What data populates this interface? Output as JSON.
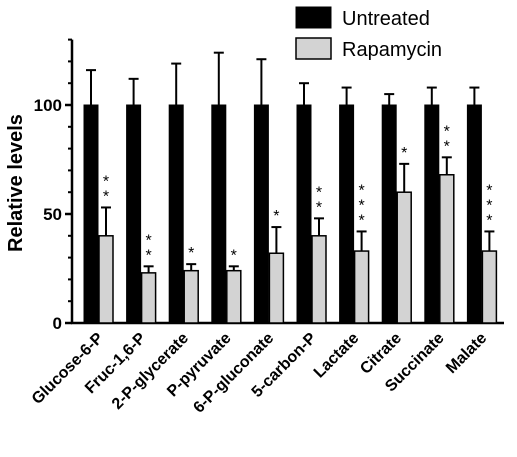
{
  "chart_data": {
    "type": "bar",
    "ylabel": "Relative levels",
    "ylim": [
      0,
      130
    ],
    "yticks": [
      0,
      50,
      100
    ],
    "categories": [
      "Glucose-6-P",
      "Fruc-1,6-P",
      "2-P-glycerate",
      "P-pyruvate",
      "6-P-gluconate",
      "5-carbon-P",
      "Lactate",
      "Citrate",
      "Succinate",
      "Malate"
    ],
    "series": [
      {
        "name": "Untreated",
        "color": "#000000",
        "values": [
          100,
          100,
          100,
          100,
          100,
          100,
          100,
          100,
          100,
          100
        ],
        "error": [
          16,
          12,
          19,
          24,
          21,
          10,
          8,
          5,
          8,
          8
        ]
      },
      {
        "name": "Rapamycin",
        "color": "#d3d3d3",
        "values": [
          40,
          23,
          24,
          24,
          32,
          40,
          33,
          60,
          68,
          33
        ],
        "error": [
          13,
          3,
          3,
          2,
          12,
          8,
          9,
          13,
          8,
          9
        ]
      }
    ],
    "significance": [
      "**",
      "**",
      "*",
      "*",
      "*",
      "**",
      "***",
      "*",
      "**",
      "***"
    ],
    "legend_position": "top-right",
    "grid": false
  }
}
